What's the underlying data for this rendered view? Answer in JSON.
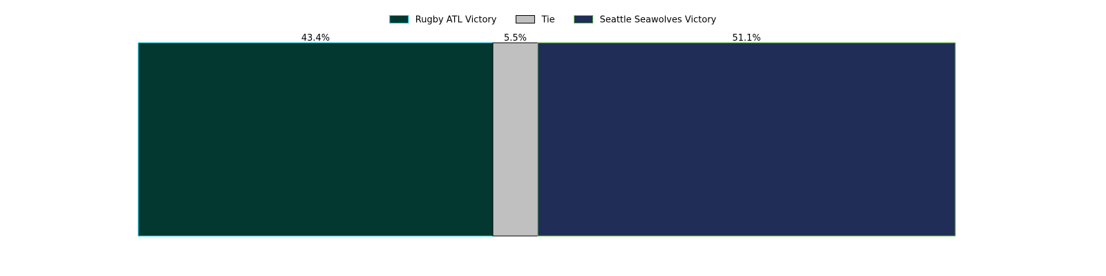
{
  "chart_data": {
    "type": "bar",
    "orientation": "horizontal-stacked",
    "title": "",
    "xlabel": "",
    "ylabel": "",
    "xlim": [
      0,
      100
    ],
    "axes_visible": false,
    "grid": false,
    "legend_position": "top-center",
    "series": [
      {
        "name": "Rugby ATL Victory",
        "value": 43.4,
        "label": "43.4%",
        "fill_color": "#02382f",
        "edge_color": "#00c8e6"
      },
      {
        "name": "Tie",
        "value": 5.5,
        "label": "5.5%",
        "fill_color": "#c0c0c0",
        "edge_color": "#000000"
      },
      {
        "name": "Seattle Seawolves Victory",
        "value": 51.1,
        "label": "51.1%",
        "fill_color": "#1f2d57",
        "edge_color": "#5fbf3a"
      }
    ]
  }
}
